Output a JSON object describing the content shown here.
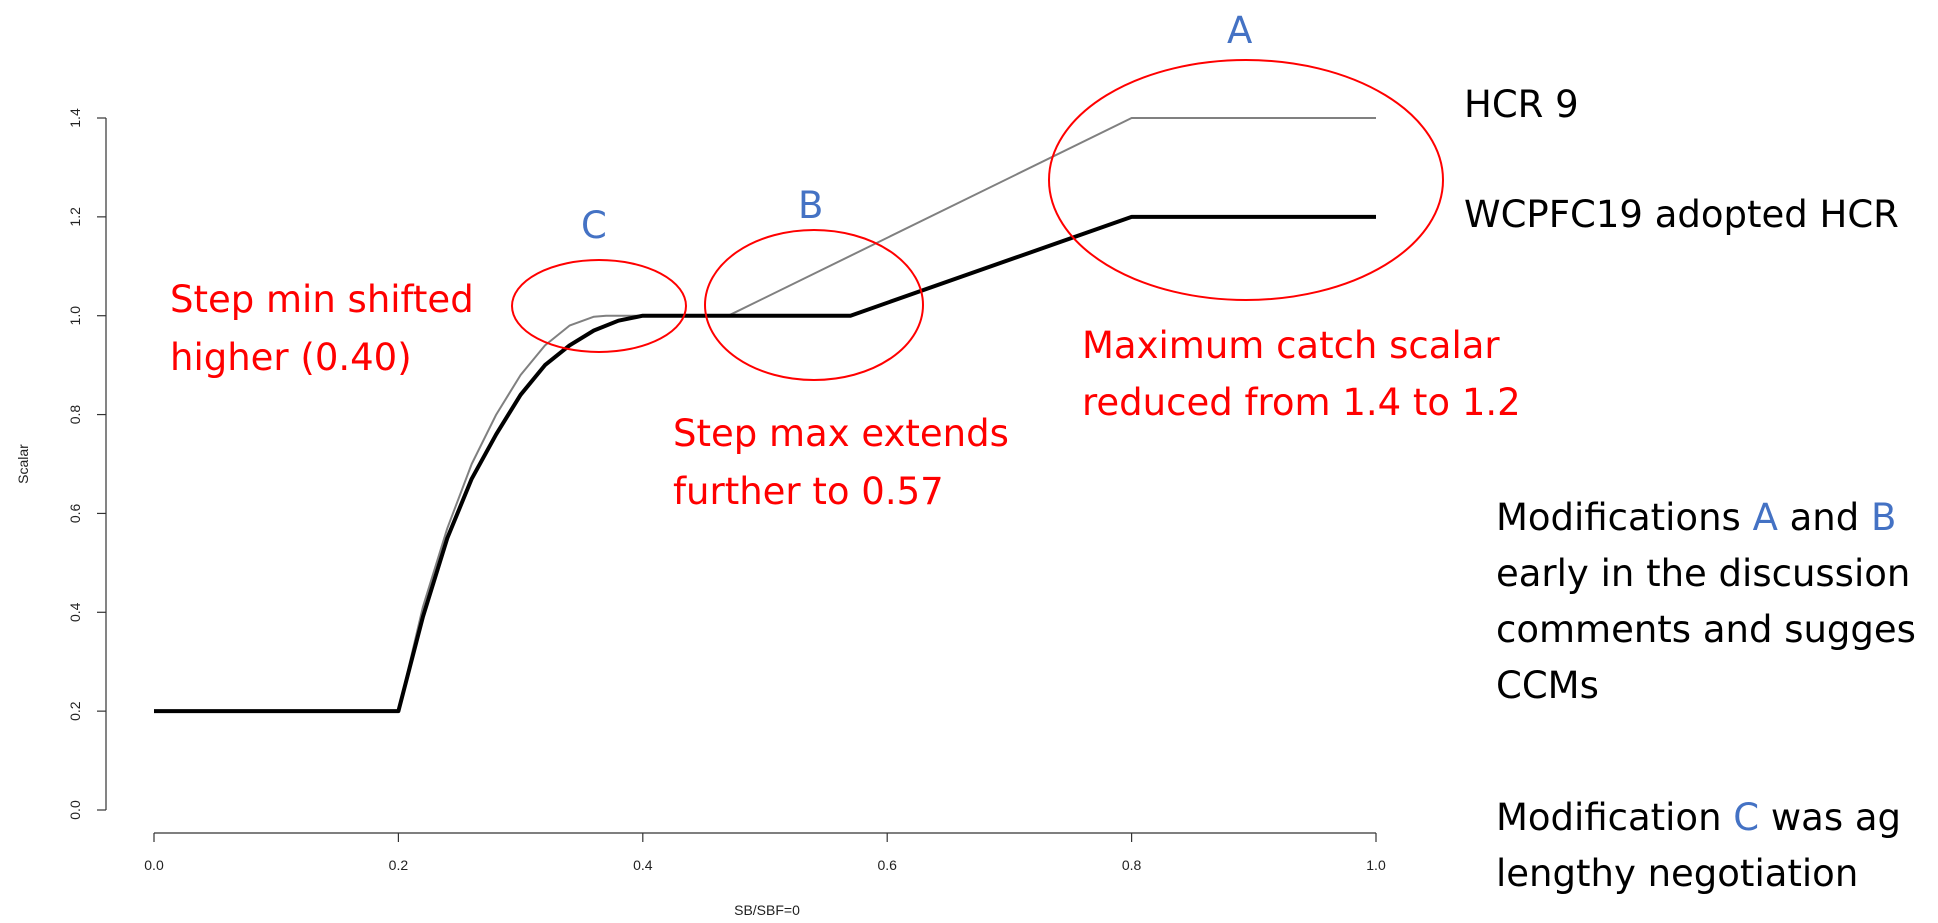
{
  "chart_data": {
    "type": "line",
    "xlabel": "SB/SBF=0",
    "ylabel": "Scalar",
    "xlim": [
      0,
      1
    ],
    "ylim": [
      0,
      1.4
    ],
    "x_ticks": [
      "0.0",
      "0.2",
      "0.4",
      "0.6",
      "0.8",
      "1.0"
    ],
    "y_ticks": [
      "0.0",
      "0.2",
      "0.4",
      "0.6",
      "0.8",
      "1.0",
      "1.2",
      "1.4"
    ],
    "series": [
      {
        "name": "HCR 9",
        "color": "#808080",
        "x": [
          0.0,
          0.2,
          0.22,
          0.24,
          0.26,
          0.28,
          0.3,
          0.32,
          0.34,
          0.36,
          0.37,
          0.47,
          0.8,
          1.0
        ],
        "y": [
          0.2,
          0.2,
          0.41,
          0.57,
          0.7,
          0.8,
          0.88,
          0.94,
          0.98,
          0.998,
          1.0,
          1.0,
          1.4,
          1.4
        ]
      },
      {
        "name": "WCPFC19 adopted HCR",
        "color": "#000000",
        "x": [
          0.0,
          0.2,
          0.22,
          0.24,
          0.26,
          0.28,
          0.3,
          0.32,
          0.34,
          0.36,
          0.38,
          0.4,
          0.57,
          0.8,
          1.0
        ],
        "y": [
          0.2,
          0.2,
          0.39,
          0.55,
          0.67,
          0.76,
          0.84,
          0.9,
          0.94,
          0.97,
          0.99,
          1.0,
          1.0,
          1.2,
          1.2
        ]
      }
    ],
    "annotations": {
      "label_a": "A",
      "label_b": "B",
      "label_c": "C",
      "step_min": [
        "Step min shifted",
        "higher (0.40)"
      ],
      "step_max": [
        "Step max extends",
        "further to 0.57"
      ],
      "max_catch": [
        "Maximum catch scalar",
        "reduced from 1.4 to 1.2"
      ],
      "note1_parts": [
        "Modifications ",
        "A",
        " and ",
        "B"
      ],
      "note1_lines": [
        "early in the discussion",
        "comments and sugges",
        "CCMs"
      ],
      "note2_parts": [
        "Modification ",
        "C",
        " was ag"
      ],
      "note2_line2": "lengthy negotiation"
    },
    "colors": {
      "annotation_red": "#ff0000",
      "annotation_blue": "#4472c4"
    }
  }
}
